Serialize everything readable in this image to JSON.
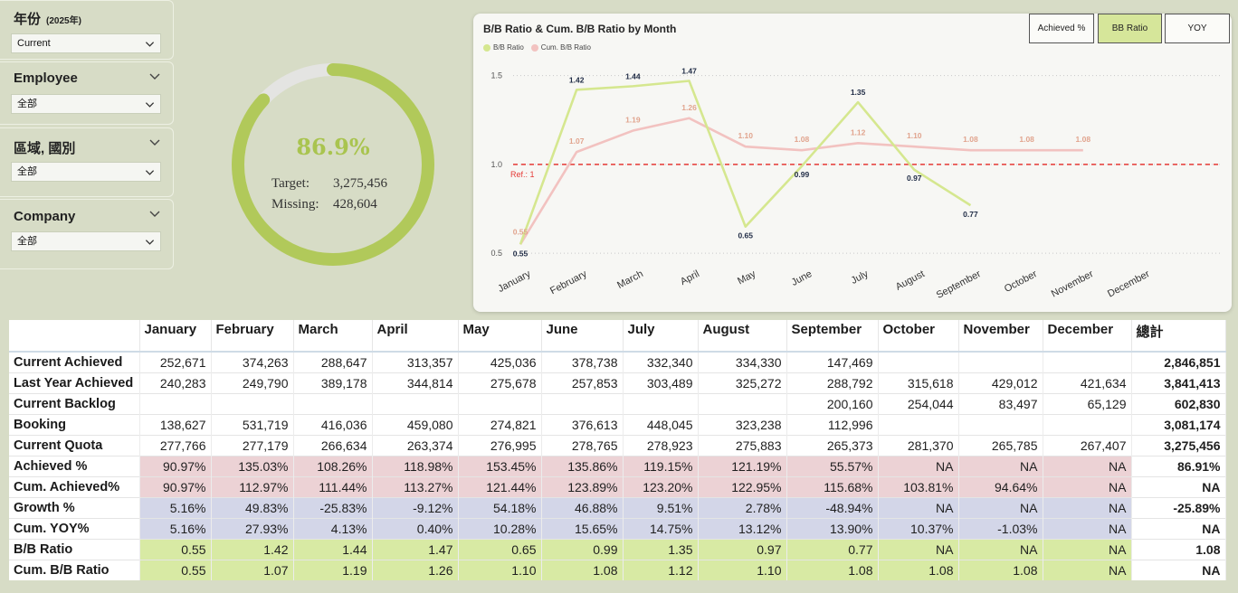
{
  "slicers": [
    {
      "title": "年份",
      "sub": "(2025年)",
      "value": "Current"
    },
    {
      "title": "Employee",
      "sub": "",
      "value": "全部"
    },
    {
      "title": "區域, 國別",
      "sub": "",
      "value": "全部"
    },
    {
      "title": "Company",
      "sub": "",
      "value": "全部"
    }
  ],
  "gauge": {
    "percent_label": "86.9%",
    "percent": 0.869,
    "target_label": "Target:",
    "target_value": "3,275,456",
    "missing_label": "Missing:",
    "missing_value": "428,604",
    "colors": {
      "fill": "#b1c95a",
      "track": "#e4e4e2"
    }
  },
  "chart_card": {
    "toggles": [
      "Achieved %",
      "BB Ratio",
      "YOY"
    ],
    "active_toggle": "BB Ratio"
  },
  "chart_data": {
    "type": "line",
    "title": "B/B Ratio & Cum. B/B Ratio by Month",
    "categories": [
      "January",
      "February",
      "March",
      "April",
      "May",
      "June",
      "July",
      "August",
      "September",
      "October",
      "November",
      "December"
    ],
    "series": [
      {
        "name": "B/B Ratio",
        "color": "#d5e78f",
        "label_color": "#1f2b45",
        "values": [
          0.55,
          1.42,
          1.44,
          1.47,
          0.65,
          0.99,
          1.35,
          0.97,
          0.77,
          null,
          null,
          null
        ]
      },
      {
        "name": "Cum. B/B Ratio",
        "color": "#f2c2c0",
        "label_color": "#e1a48e",
        "values": [
          0.55,
          1.07,
          1.19,
          1.26,
          1.1,
          1.08,
          1.12,
          1.1,
          1.08,
          1.08,
          1.08,
          null
        ]
      }
    ],
    "reference_line": {
      "value": 1.0,
      "label": "Ref.: 1",
      "color": "#e53935"
    },
    "yticks": [
      0.5,
      1.0,
      1.5
    ],
    "ytick_labels": [
      "0.5",
      "1.0",
      "1.5"
    ],
    "ylim": [
      0.45,
      1.62
    ],
    "grid": "horizontal-dotted",
    "legend": "top-left"
  },
  "table": {
    "month_headers": [
      "January",
      "February",
      "March",
      "April",
      "May",
      "June",
      "July",
      "August",
      "September",
      "October",
      "November",
      "December"
    ],
    "total_header": "總計",
    "rows": [
      {
        "label": "Current Achieved",
        "style": "plain",
        "values": [
          "252,671",
          "374,263",
          "288,647",
          "313,357",
          "425,036",
          "378,738",
          "332,340",
          "334,330",
          "147,469",
          "",
          "",
          ""
        ],
        "total": "2,846,851"
      },
      {
        "label": "Last Year Achieved",
        "style": "plain",
        "values": [
          "240,283",
          "249,790",
          "389,178",
          "344,814",
          "275,678",
          "257,853",
          "303,489",
          "325,272",
          "288,792",
          "315,618",
          "429,012",
          "421,634"
        ],
        "total": "3,841,413"
      },
      {
        "label": "Current Backlog",
        "style": "plain",
        "values": [
          "",
          "",
          "",
          "",
          "",
          "",
          "",
          "",
          "200,160",
          "254,044",
          "83,497",
          "65,129"
        ],
        "total": "602,830"
      },
      {
        "label": "Booking",
        "style": "plain",
        "values": [
          "138,627",
          "531,719",
          "416,036",
          "459,080",
          "274,821",
          "376,613",
          "448,045",
          "323,238",
          "112,996",
          "",
          "",
          ""
        ],
        "total": "3,081,174"
      },
      {
        "label": "Current Quota",
        "style": "plain",
        "values": [
          "277,766",
          "277,179",
          "266,634",
          "263,374",
          "276,995",
          "278,765",
          "278,923",
          "275,883",
          "265,373",
          "281,370",
          "265,785",
          "267,407"
        ],
        "total": "3,275,456"
      },
      {
        "label": "Achieved %",
        "style": "pink",
        "values": [
          "90.97%",
          "135.03%",
          "108.26%",
          "118.98%",
          "153.45%",
          "135.86%",
          "119.15%",
          "121.19%",
          "55.57%",
          "NA",
          "NA",
          "NA"
        ],
        "total": "86.91%"
      },
      {
        "label": "Cum. Achieved%",
        "style": "pink",
        "values": [
          "90.97%",
          "112.97%",
          "111.44%",
          "113.27%",
          "121.44%",
          "123.89%",
          "123.20%",
          "122.95%",
          "115.68%",
          "103.81%",
          "94.64%",
          "NA"
        ],
        "total": "NA"
      },
      {
        "label": "Growth %",
        "style": "blue",
        "values": [
          "5.16%",
          "49.83%",
          "-25.83%",
          "-9.12%",
          "54.18%",
          "46.88%",
          "9.51%",
          "2.78%",
          "-48.94%",
          "NA",
          "NA",
          "NA"
        ],
        "total": "-25.89%"
      },
      {
        "label": "Cum. YOY%",
        "style": "blue",
        "values": [
          "5.16%",
          "27.93%",
          "4.13%",
          "0.40%",
          "10.28%",
          "15.65%",
          "14.75%",
          "13.12%",
          "13.90%",
          "10.37%",
          "-1.03%",
          "NA"
        ],
        "total": "NA"
      },
      {
        "label": "B/B Ratio",
        "style": "green",
        "values": [
          "0.55",
          "1.42",
          "1.44",
          "1.47",
          "0.65",
          "0.99",
          "1.35",
          "0.97",
          "0.77",
          "NA",
          "NA",
          "NA"
        ],
        "total": "1.08"
      },
      {
        "label": "Cum. B/B Ratio",
        "style": "green",
        "values": [
          "0.55",
          "1.07",
          "1.19",
          "1.26",
          "1.10",
          "1.08",
          "1.12",
          "1.10",
          "1.08",
          "1.08",
          "1.08",
          "NA"
        ],
        "total": "NA"
      }
    ]
  }
}
